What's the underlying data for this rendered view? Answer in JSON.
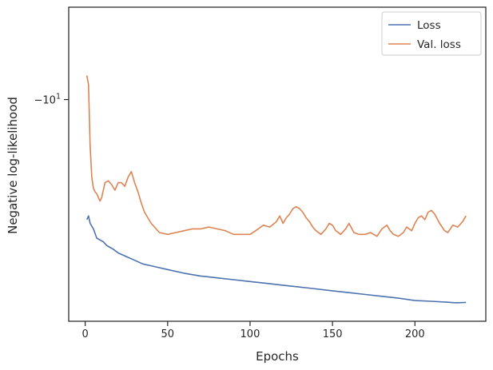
{
  "chart_data": {
    "type": "line",
    "title": "",
    "xlabel": "Epochs",
    "ylabel": "Negative log-likelihood",
    "xlim": [
      -10,
      243
    ],
    "xticks": [
      0,
      50,
      100,
      150,
      200
    ],
    "y_scale": "symlog",
    "ylim": [
      -8.8,
      -10.5
    ],
    "yticks": [
      {
        "value": -10,
        "label": "−10",
        "exponent": "1"
      }
    ],
    "grid": false,
    "legend_position": "top-right",
    "series": [
      {
        "name": "Loss",
        "color": "#4c72b0",
        "x": [
          1,
          2,
          3,
          5,
          7,
          9,
          11,
          13,
          15,
          17,
          20,
          25,
          30,
          35,
          40,
          45,
          50,
          60,
          70,
          80,
          90,
          100,
          110,
          120,
          130,
          140,
          150,
          160,
          170,
          180,
          190,
          200,
          210,
          220,
          225,
          231
        ],
        "y": [
          -9.35,
          -9.37,
          -9.33,
          -9.3,
          -9.25,
          -9.24,
          -9.23,
          -9.21,
          -9.2,
          -9.19,
          -9.17,
          -9.15,
          -9.13,
          -9.11,
          -9.1,
          -9.09,
          -9.08,
          -9.06,
          -9.045,
          -9.035,
          -9.025,
          -9.015,
          -9.005,
          -8.995,
          -8.985,
          -8.975,
          -8.965,
          -8.955,
          -8.945,
          -8.935,
          -8.925,
          -8.912,
          -8.908,
          -8.903,
          -8.9,
          -8.902
        ]
      },
      {
        "name": "Val. loss",
        "color": "#dd8452",
        "x": [
          1,
          2,
          3,
          4,
          5,
          6,
          7,
          8,
          9,
          10,
          12,
          14,
          16,
          18,
          20,
          22,
          24,
          26,
          28,
          30,
          32,
          34,
          36,
          38,
          40,
          45,
          50,
          55,
          60,
          65,
          70,
          75,
          80,
          85,
          90,
          95,
          100,
          105,
          108,
          112,
          116,
          118,
          120,
          122,
          124,
          126,
          128,
          130,
          132,
          134,
          136,
          138,
          140,
          143,
          146,
          148,
          150,
          152,
          155,
          158,
          160,
          163,
          166,
          170,
          173,
          177,
          180,
          183,
          185,
          187,
          190,
          193,
          195,
          198,
          200,
          202,
          204,
          206,
          208,
          210,
          212,
          215,
          218,
          220,
          223,
          226,
          229,
          231
        ],
        "y": [
          -10.13,
          -10.08,
          -9.75,
          -9.58,
          -9.52,
          -9.5,
          -9.49,
          -9.47,
          -9.45,
          -9.47,
          -9.55,
          -9.56,
          -9.54,
          -9.51,
          -9.55,
          -9.55,
          -9.53,
          -9.58,
          -9.61,
          -9.55,
          -9.5,
          -9.44,
          -9.39,
          -9.36,
          -9.33,
          -9.28,
          -9.27,
          -9.28,
          -9.29,
          -9.3,
          -9.3,
          -9.31,
          -9.3,
          -9.29,
          -9.27,
          -9.27,
          -9.27,
          -9.3,
          -9.32,
          -9.31,
          -9.34,
          -9.37,
          -9.33,
          -9.36,
          -9.38,
          -9.41,
          -9.42,
          -9.41,
          -9.39,
          -9.36,
          -9.34,
          -9.31,
          -9.29,
          -9.27,
          -9.3,
          -9.33,
          -9.32,
          -9.29,
          -9.27,
          -9.3,
          -9.33,
          -9.28,
          -9.27,
          -9.27,
          -9.28,
          -9.26,
          -9.3,
          -9.32,
          -9.29,
          -9.27,
          -9.26,
          -9.28,
          -9.31,
          -9.29,
          -9.33,
          -9.36,
          -9.37,
          -9.35,
          -9.39,
          -9.4,
          -9.38,
          -9.33,
          -9.29,
          -9.28,
          -9.32,
          -9.31,
          -9.34,
          -9.37
        ]
      }
    ]
  }
}
